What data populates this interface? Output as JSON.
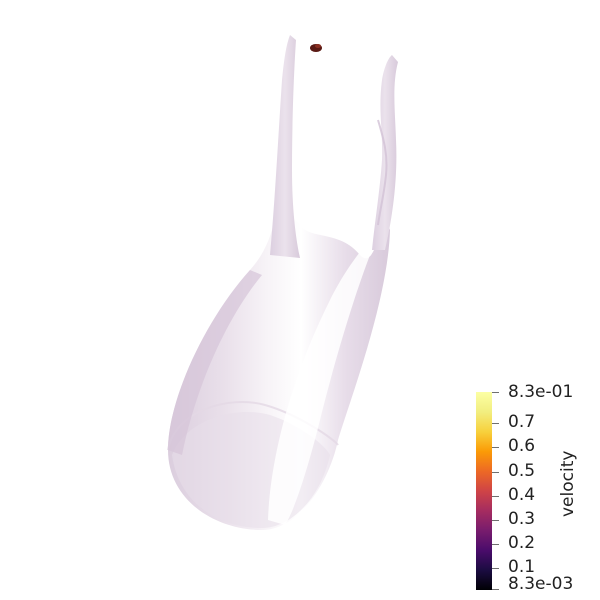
{
  "viewport": {
    "background": "#ffffff",
    "surface_color": "#e9dfe9",
    "surface_highlight": "#ffffff",
    "surface_shade": "#d6c8d8",
    "particle_color": "#5a1a14"
  },
  "colorbar": {
    "title": "velocity",
    "colormap": "inferno",
    "range": [
      0.0083,
      0.83
    ],
    "max_label": "8.3e-01",
    "min_label": "8.3e-03",
    "ticks": [
      {
        "value": 0.7,
        "label": "0.7"
      },
      {
        "value": 0.6,
        "label": "0.6"
      },
      {
        "value": 0.5,
        "label": "0.5"
      },
      {
        "value": 0.4,
        "label": "0.4"
      },
      {
        "value": 0.3,
        "label": "0.3"
      },
      {
        "value": 0.2,
        "label": "0.2"
      },
      {
        "value": 0.1,
        "label": "0.1"
      }
    ]
  }
}
